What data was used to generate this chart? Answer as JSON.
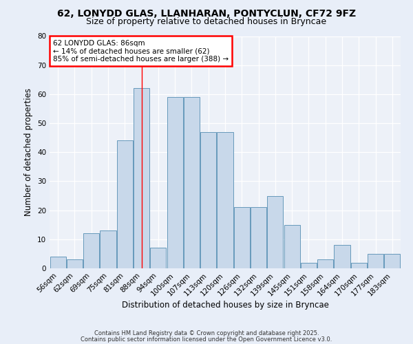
{
  "title1": "62, LONYDD GLAS, LLANHARAN, PONTYCLUN, CF72 9FZ",
  "title2": "Size of property relative to detached houses in Bryncae",
  "xlabel": "Distribution of detached houses by size in Bryncae",
  "ylabel": "Number of detached properties",
  "categories": [
    "56sqm",
    "62sqm",
    "69sqm",
    "75sqm",
    "81sqm",
    "88sqm",
    "94sqm",
    "100sqm",
    "107sqm",
    "113sqm",
    "120sqm",
    "126sqm",
    "132sqm",
    "139sqm",
    "145sqm",
    "151sqm",
    "158sqm",
    "164sqm",
    "170sqm",
    "177sqm",
    "183sqm"
  ],
  "values": [
    4,
    3,
    12,
    13,
    44,
    62,
    7,
    59,
    59,
    47,
    47,
    21,
    21,
    25,
    15,
    2,
    3,
    8,
    2,
    5,
    5
  ],
  "bar_color": "#c8d8ea",
  "bar_edge_color": "#6699bb",
  "red_line_x": 5.0,
  "annotation_title": "62 LONYDD GLAS: 86sqm",
  "annotation_line1": "← 14% of detached houses are smaller (62)",
  "annotation_line2": "85% of semi-detached houses are larger (388) →",
  "annotation_box_color": "white",
  "annotation_box_edge": "red",
  "footer1": "Contains HM Land Registry data © Crown copyright and database right 2025.",
  "footer2": "Contains public sector information licensed under the Open Government Licence v3.0.",
  "ylim": [
    0,
    80
  ],
  "yticks": [
    0,
    10,
    20,
    30,
    40,
    50,
    60,
    70,
    80
  ],
  "bg_color": "#e8eef8",
  "plot_bg_color": "#edf1f8"
}
